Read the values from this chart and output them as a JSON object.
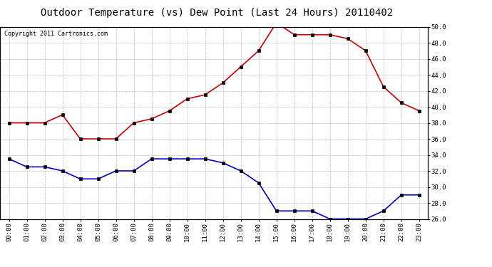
{
  "title": "Outdoor Temperature (vs) Dew Point (Last 24 Hours) 20110402",
  "copyright": "Copyright 2011 Cartronics.com",
  "hours": [
    "00:00",
    "01:00",
    "02:00",
    "03:00",
    "04:00",
    "05:00",
    "06:00",
    "07:00",
    "08:00",
    "09:00",
    "10:00",
    "11:00",
    "12:00",
    "13:00",
    "14:00",
    "15:00",
    "16:00",
    "17:00",
    "18:00",
    "19:00",
    "20:00",
    "21:00",
    "22:00",
    "23:00"
  ],
  "temp": [
    38.0,
    38.0,
    38.0,
    39.0,
    36.0,
    36.0,
    36.0,
    38.0,
    38.5,
    39.5,
    41.0,
    41.5,
    43.0,
    45.0,
    47.0,
    50.5,
    49.0,
    49.0,
    49.0,
    48.5,
    47.0,
    42.5,
    40.5,
    39.5
  ],
  "dewpoint": [
    33.5,
    32.5,
    32.5,
    32.0,
    31.0,
    31.0,
    32.0,
    32.0,
    33.5,
    33.5,
    33.5,
    33.5,
    33.0,
    32.0,
    30.5,
    27.0,
    27.0,
    27.0,
    26.0,
    26.0,
    26.0,
    27.0,
    29.0,
    29.0
  ],
  "temp_color": "#cc0000",
  "dewpoint_color": "#0000cc",
  "bg_color": "#ffffff",
  "grid_color": "#bbbbbb",
  "ylim_min": 26.0,
  "ylim_max": 50.0,
  "yticks": [
    26.0,
    28.0,
    30.0,
    32.0,
    34.0,
    36.0,
    38.0,
    40.0,
    42.0,
    44.0,
    46.0,
    48.0,
    50.0
  ],
  "title_fontsize": 10,
  "copyright_fontsize": 6,
  "tick_fontsize": 6.5,
  "marker": "s",
  "marker_size": 2.5,
  "linewidth": 1.2
}
